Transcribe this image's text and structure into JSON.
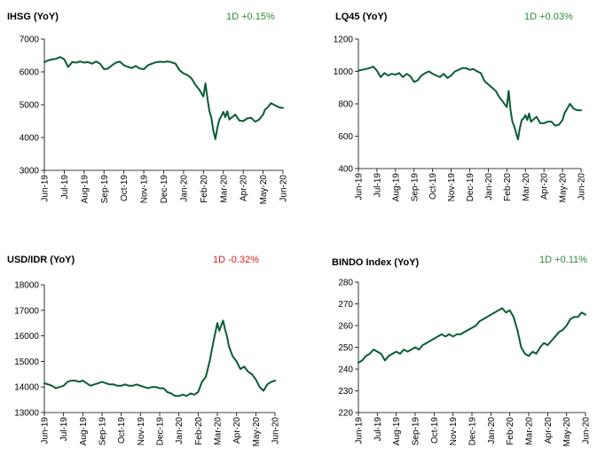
{
  "chart_data": [
    {
      "type": "line",
      "title": "IHSG (YoY)",
      "change_label": "1D +0.15%",
      "change_color": "#2e8b3a",
      "line_color": "#0a5c36",
      "ylim": [
        3000,
        7000
      ],
      "yticks": [
        3000,
        4000,
        5000,
        6000,
        7000
      ],
      "xticks": [
        "Jun-19",
        "Jul-19",
        "Aug-19",
        "Sep-19",
        "Oct-19",
        "Nov-19",
        "Dec-19",
        "Jan-20",
        "Feb-20",
        "Mar-20",
        "Apr-20",
        "May-20",
        "Jun-20"
      ],
      "x": [
        0,
        0.2,
        0.4,
        0.6,
        0.8,
        1,
        1.2,
        1.4,
        1.6,
        1.8,
        2,
        2.2,
        2.4,
        2.6,
        2.8,
        3,
        3.2,
        3.4,
        3.6,
        3.8,
        4,
        4.2,
        4.4,
        4.6,
        4.8,
        5,
        5.2,
        5.4,
        5.6,
        5.8,
        6,
        6.2,
        6.4,
        6.6,
        6.8,
        7,
        7.2,
        7.4,
        7.6,
        7.8,
        8,
        8.1,
        8.2,
        8.3,
        8.4,
        8.5,
        8.6,
        8.7,
        8.8,
        8.9,
        9,
        9.1,
        9.2,
        9.3,
        9.4,
        9.6,
        9.8,
        10,
        10.2,
        10.4,
        10.6,
        10.8,
        11,
        11.1,
        11.2,
        11.4,
        11.6,
        11.8,
        12
      ],
      "y": [
        6300,
        6350,
        6380,
        6400,
        6450,
        6380,
        6150,
        6300,
        6280,
        6320,
        6280,
        6300,
        6250,
        6320,
        6250,
        6080,
        6100,
        6200,
        6280,
        6310,
        6200,
        6150,
        6120,
        6180,
        6100,
        6080,
        6200,
        6250,
        6290,
        6310,
        6300,
        6320,
        6290,
        6250,
        6050,
        5950,
        5900,
        5800,
        5600,
        5450,
        5250,
        5650,
        5200,
        4800,
        4600,
        4200,
        3950,
        4300,
        4550,
        4650,
        4780,
        4620,
        4800,
        4550,
        4600,
        4700,
        4520,
        4500,
        4580,
        4600,
        4480,
        4550,
        4700,
        4850,
        4900,
        5050,
        4980,
        4920,
        4900
      ]
    },
    {
      "type": "line",
      "title": "LQ45 (YoY)",
      "change_label": "1D +0.03%",
      "change_color": "#2e8b3a",
      "line_color": "#0a5c36",
      "ylim": [
        400,
        1200
      ],
      "yticks": [
        400,
        600,
        800,
        1000,
        1200
      ],
      "xticks": [
        "Jun-19",
        "Jul-19",
        "Aug-19",
        "Sep-19",
        "Oct-19",
        "Nov-19",
        "Dec-19",
        "Jan-20",
        "Feb-20",
        "Mar-20",
        "Apr-20",
        "May-20",
        "Jun-20"
      ],
      "x": [
        0,
        0.2,
        0.4,
        0.6,
        0.8,
        1,
        1.2,
        1.4,
        1.6,
        1.8,
        2,
        2.2,
        2.4,
        2.6,
        2.8,
        3,
        3.2,
        3.4,
        3.6,
        3.8,
        4,
        4.2,
        4.4,
        4.6,
        4.8,
        5,
        5.2,
        5.4,
        5.6,
        5.8,
        6,
        6.2,
        6.4,
        6.6,
        6.8,
        7,
        7.2,
        7.4,
        7.6,
        7.8,
        8,
        8.1,
        8.2,
        8.3,
        8.4,
        8.5,
        8.6,
        8.7,
        8.8,
        8.9,
        9,
        9.1,
        9.2,
        9.3,
        9.4,
        9.6,
        9.8,
        10,
        10.2,
        10.4,
        10.6,
        10.8,
        11,
        11.1,
        11.2,
        11.4,
        11.6,
        11.8,
        12
      ],
      "y": [
        1005,
        1010,
        1015,
        1020,
        1030,
        1005,
        965,
        990,
        975,
        985,
        980,
        990,
        965,
        985,
        970,
        935,
        945,
        975,
        990,
        1000,
        985,
        975,
        965,
        985,
        960,
        975,
        1000,
        1010,
        1020,
        1020,
        1010,
        1015,
        1000,
        990,
        940,
        920,
        900,
        880,
        840,
        810,
        780,
        880,
        760,
        690,
        660,
        620,
        580,
        650,
        700,
        710,
        730,
        700,
        740,
        690,
        700,
        720,
        680,
        680,
        690,
        690,
        665,
        670,
        700,
        740,
        760,
        800,
        770,
        760,
        760
      ]
    },
    {
      "type": "line",
      "title": "USD/IDR  (YoY)",
      "change_label": "1D -0.32%",
      "change_color": "#e02020",
      "line_color": "#0a5c36",
      "ylim": [
        13000,
        18000
      ],
      "yticks": [
        13000,
        14000,
        15000,
        16000,
        17000,
        18000
      ],
      "xticks": [
        "Jun-19",
        "Jul-19",
        "Aug-19",
        "Sep-19",
        "Oct-19",
        "Nov-19",
        "Dec-19",
        "Jan-20",
        "Feb-20",
        "Mar-20",
        "Apr-20",
        "May-20",
        "Jun-20"
      ],
      "x": [
        0,
        0.2,
        0.4,
        0.6,
        0.8,
        1,
        1.2,
        1.4,
        1.6,
        1.8,
        2,
        2.2,
        2.4,
        2.6,
        2.8,
        3,
        3.2,
        3.4,
        3.6,
        3.8,
        4,
        4.2,
        4.4,
        4.6,
        4.8,
        5,
        5.2,
        5.4,
        5.6,
        5.8,
        6,
        6.2,
        6.4,
        6.6,
        6.8,
        7,
        7.2,
        7.4,
        7.6,
        7.8,
        8,
        8.2,
        8.4,
        8.6,
        8.8,
        9,
        9.1,
        9.2,
        9.3,
        9.4,
        9.5,
        9.6,
        9.8,
        10,
        10.2,
        10.4,
        10.6,
        10.8,
        11,
        11.2,
        11.4,
        11.6,
        11.8,
        12
      ],
      "y": [
        14150,
        14100,
        14050,
        13950,
        14000,
        14050,
        14200,
        14250,
        14250,
        14200,
        14250,
        14150,
        14050,
        14100,
        14150,
        14200,
        14150,
        14100,
        14100,
        14050,
        14050,
        14100,
        14050,
        14050,
        14100,
        14050,
        14000,
        13950,
        14000,
        14000,
        13950,
        13950,
        13800,
        13750,
        13650,
        13650,
        13700,
        13650,
        13750,
        13700,
        13800,
        14200,
        14400,
        15000,
        15800,
        16500,
        16200,
        16400,
        16600,
        16250,
        16000,
        15600,
        15200,
        15000,
        14700,
        14800,
        14600,
        14500,
        14300,
        14000,
        13850,
        14100,
        14200,
        14250
      ]
    },
    {
      "type": "line",
      "title": "BINDO Index (YoY)",
      "change_label": "1D +0.11%",
      "change_color": "#2e8b3a",
      "line_color": "#0a5c36",
      "ylim": [
        220,
        280
      ],
      "yticks": [
        220,
        230,
        240,
        250,
        260,
        270,
        280
      ],
      "xticks": [
        "Jun-19",
        "Jul-19",
        "Aug-19",
        "Sep-19",
        "Oct-19",
        "Nov-19",
        "Dec-19",
        "Jan-20",
        "Feb-20",
        "Mar-20",
        "Apr-20",
        "May-20",
        "Jun-20"
      ],
      "x": [
        0,
        0.2,
        0.4,
        0.6,
        0.8,
        1,
        1.2,
        1.4,
        1.6,
        1.8,
        2,
        2.2,
        2.4,
        2.6,
        2.8,
        3,
        3.2,
        3.4,
        3.6,
        3.8,
        4,
        4.2,
        4.4,
        4.6,
        4.8,
        5,
        5.2,
        5.4,
        5.6,
        5.8,
        6,
        6.2,
        6.4,
        6.6,
        6.8,
        7,
        7.2,
        7.4,
        7.6,
        7.8,
        8,
        8.2,
        8.4,
        8.6,
        8.8,
        9,
        9.2,
        9.4,
        9.6,
        9.8,
        10,
        10.2,
        10.4,
        10.6,
        10.8,
        11,
        11.2,
        11.4,
        11.6,
        11.8,
        12
      ],
      "y": [
        243,
        244,
        246,
        247,
        249,
        248,
        247,
        244,
        246,
        247,
        248,
        247,
        249,
        248,
        249,
        250,
        249,
        251,
        252,
        253,
        254,
        255,
        256,
        255,
        256,
        255,
        256,
        256,
        257,
        258,
        259,
        260,
        262,
        263,
        264,
        265,
        266,
        267,
        268,
        266,
        267,
        264,
        258,
        250,
        247,
        246,
        248,
        247,
        250,
        252,
        251,
        253,
        255,
        257,
        258,
        260,
        263,
        264,
        264,
        266,
        265
      ]
    }
  ]
}
